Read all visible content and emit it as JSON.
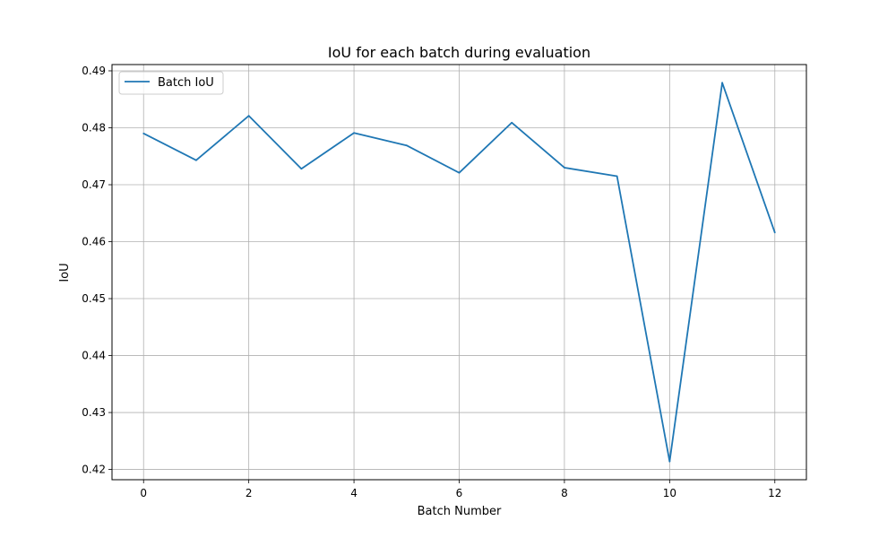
{
  "chart_data": {
    "type": "line",
    "title": "IoU for each batch during evaluation",
    "xlabel": "Batch Number",
    "ylabel": "IoU",
    "x": [
      0,
      1,
      2,
      3,
      4,
      5,
      6,
      7,
      8,
      9,
      10,
      11,
      12
    ],
    "series": [
      {
        "name": "Batch IoU",
        "color": "#1f77b4",
        "values": [
          0.479,
          0.4743,
          0.4821,
          0.4728,
          0.4791,
          0.4769,
          0.4721,
          0.4809,
          0.473,
          0.4715,
          0.4214,
          0.4879,
          0.4616
        ]
      }
    ],
    "xlim": [
      -0.6,
      12.6
    ],
    "ylim": [
      0.4182,
      0.4911
    ],
    "xticks": [
      0,
      2,
      4,
      6,
      8,
      10,
      12
    ],
    "xtick_labels": [
      "0",
      "2",
      "4",
      "6",
      "8",
      "10",
      "12"
    ],
    "yticks": [
      0.42,
      0.43,
      0.44,
      0.45,
      0.46,
      0.47,
      0.48,
      0.49
    ],
    "ytick_labels": [
      "0.42",
      "0.43",
      "0.44",
      "0.45",
      "0.46",
      "0.47",
      "0.48",
      "0.49"
    ],
    "grid": true,
    "grid_color": "#b0b0b0",
    "legend_position": "top-left"
  }
}
